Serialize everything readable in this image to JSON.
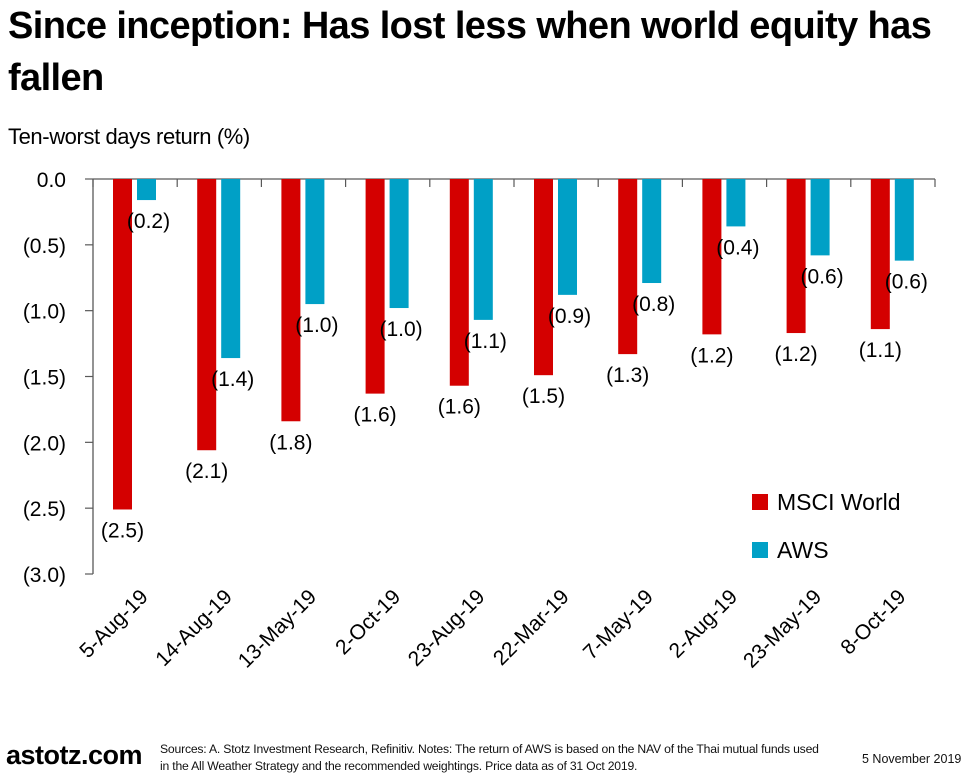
{
  "header": {
    "title": "Since inception: Has lost less when world equity has fallen",
    "subtitle": "Ten-worst days return (%)"
  },
  "colors": {
    "msci": "#d40000",
    "aws": "#00a0c6",
    "axis": "#595959",
    "text": "#000000"
  },
  "chart_data": {
    "type": "bar",
    "title": "Since inception: Has lost less when world equity has fallen",
    "ylabel": "Ten-worst days return (%)",
    "xlabel": "",
    "categories": [
      "5-Aug-19",
      "14-Aug-19",
      "13-May-19",
      "2-Oct-19",
      "23-Aug-19",
      "22-Mar-19",
      "7-May-19",
      "2-Aug-19",
      "23-May-19",
      "8-Oct-19"
    ],
    "series": [
      {
        "name": "MSCI World",
        "color": "#d40000",
        "values": [
          -2.51,
          -2.06,
          -1.84,
          -1.63,
          -1.57,
          -1.49,
          -1.33,
          -1.18,
          -1.17,
          -1.14
        ],
        "labels": [
          "(2.5)",
          "(2.1)",
          "(1.8)",
          "(1.6)",
          "(1.6)",
          "(1.5)",
          "(1.3)",
          "(1.2)",
          "(1.2)",
          "(1.1)"
        ]
      },
      {
        "name": "AWS",
        "color": "#00a0c6",
        "values": [
          -0.16,
          -1.36,
          -0.95,
          -0.98,
          -1.07,
          -0.88,
          -0.79,
          -0.36,
          -0.58,
          -0.62
        ],
        "labels": [
          "(0.2)",
          "(1.4)",
          "(1.0)",
          "(1.0)",
          "(1.1)",
          "(0.9)",
          "(0.8)",
          "(0.4)",
          "(0.6)",
          "(0.6)"
        ]
      }
    ],
    "ylim": [
      -3.0,
      0.0
    ],
    "yticks": [
      0.0,
      -0.5,
      -1.0,
      -1.5,
      -2.0,
      -2.5,
      -3.0
    ],
    "ytick_labels": [
      "0.0",
      "(0.5)",
      "(1.0)",
      "(1.5)",
      "(2.0)",
      "(2.5)",
      "(3.0)"
    ],
    "grid": false,
    "legend": {
      "position": "bottom-right",
      "entries": [
        "MSCI World",
        "AWS"
      ]
    },
    "xtick_rotation": "diagonal"
  },
  "footer": {
    "logo": "astotz.com",
    "notes": "Sources: A. Stotz Investment Research, Refinitiv. Notes: The return of AWS is based on the NAV of the Thai mutual funds used in the All Weather Strategy and the recommended weightings. Price data as of 31 Oct 2019.",
    "date": "5 November 2019"
  }
}
